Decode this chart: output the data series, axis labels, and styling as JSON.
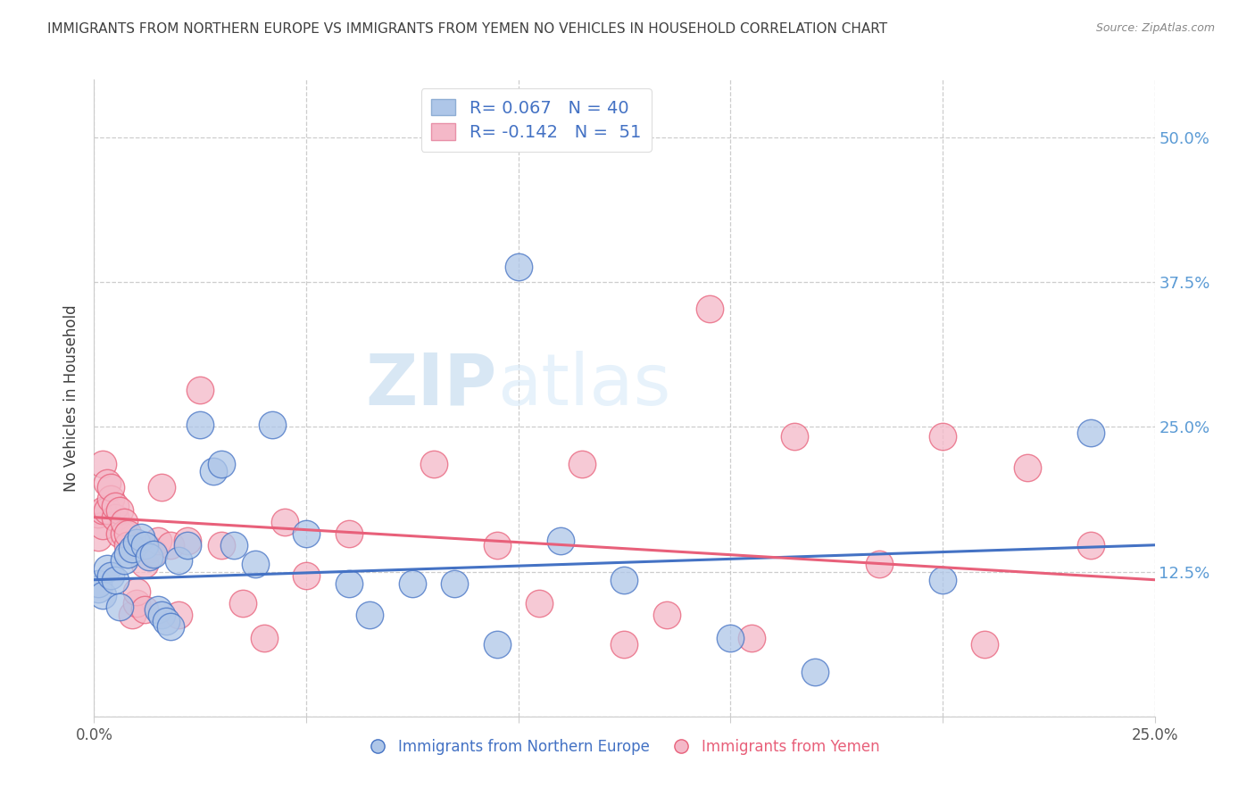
{
  "title": "IMMIGRANTS FROM NORTHERN EUROPE VS IMMIGRANTS FROM YEMEN NO VEHICLES IN HOUSEHOLD CORRELATION CHART",
  "source": "Source: ZipAtlas.com",
  "ylabel": "No Vehicles in Household",
  "right_yticks": [
    "50.0%",
    "37.5%",
    "25.0%",
    "12.5%"
  ],
  "right_ytick_vals": [
    0.5,
    0.375,
    0.25,
    0.125
  ],
  "xlim": [
    0.0,
    0.25
  ],
  "ylim": [
    0.0,
    0.55
  ],
  "legend_label1": "Immigrants from Northern Europe",
  "legend_label2": "Immigrants from Yemen",
  "R1": "0.067",
  "N1": "40",
  "R2": "-0.142",
  "N2": "51",
  "color_blue": "#aec6e8",
  "color_pink": "#f4b8c8",
  "line_blue": "#4472c4",
  "line_pink": "#e8607a",
  "right_axis_color": "#5b9bd5",
  "watermark_zip": "ZIP",
  "watermark_atlas": "atlas",
  "blue_x": [
    0.001,
    0.001,
    0.002,
    0.003,
    0.004,
    0.005,
    0.006,
    0.007,
    0.008,
    0.009,
    0.01,
    0.011,
    0.012,
    0.013,
    0.014,
    0.015,
    0.016,
    0.017,
    0.018,
    0.02,
    0.022,
    0.025,
    0.028,
    0.03,
    0.033,
    0.038,
    0.042,
    0.05,
    0.06,
    0.065,
    0.075,
    0.085,
    0.095,
    0.1,
    0.11,
    0.125,
    0.15,
    0.17,
    0.2,
    0.235
  ],
  "blue_y": [
    0.11,
    0.115,
    0.105,
    0.128,
    0.122,
    0.118,
    0.095,
    0.135,
    0.14,
    0.145,
    0.15,
    0.155,
    0.148,
    0.138,
    0.14,
    0.092,
    0.088,
    0.082,
    0.078,
    0.135,
    0.148,
    0.252,
    0.212,
    0.218,
    0.148,
    0.132,
    0.252,
    0.158,
    0.115,
    0.088,
    0.115,
    0.115,
    0.062,
    0.388,
    0.152,
    0.118,
    0.068,
    0.038,
    0.118,
    0.245
  ],
  "pink_x": [
    0.001,
    0.001,
    0.002,
    0.002,
    0.002,
    0.003,
    0.003,
    0.004,
    0.004,
    0.005,
    0.005,
    0.006,
    0.006,
    0.007,
    0.007,
    0.008,
    0.008,
    0.009,
    0.01,
    0.01,
    0.011,
    0.012,
    0.012,
    0.013,
    0.014,
    0.015,
    0.016,
    0.018,
    0.02,
    0.022,
    0.025,
    0.03,
    0.035,
    0.04,
    0.045,
    0.05,
    0.06,
    0.08,
    0.095,
    0.105,
    0.115,
    0.125,
    0.135,
    0.145,
    0.155,
    0.165,
    0.185,
    0.2,
    0.21,
    0.22,
    0.235
  ],
  "pink_y": [
    0.155,
    0.175,
    0.165,
    0.178,
    0.218,
    0.178,
    0.202,
    0.188,
    0.198,
    0.172,
    0.182,
    0.158,
    0.178,
    0.158,
    0.168,
    0.148,
    0.158,
    0.088,
    0.098,
    0.108,
    0.148,
    0.092,
    0.132,
    0.145,
    0.142,
    0.152,
    0.198,
    0.148,
    0.088,
    0.152,
    0.282,
    0.148,
    0.098,
    0.068,
    0.168,
    0.122,
    0.158,
    0.218,
    0.148,
    0.098,
    0.218,
    0.062,
    0.088,
    0.352,
    0.068,
    0.242,
    0.132,
    0.242,
    0.062,
    0.215,
    0.148
  ],
  "blue_trend_x0": 0.0,
  "blue_trend_y0": 0.118,
  "blue_trend_x1": 0.25,
  "blue_trend_y1": 0.148,
  "pink_trend_x0": 0.0,
  "pink_trend_y0": 0.172,
  "pink_trend_x1": 0.25,
  "pink_trend_y1": 0.118
}
